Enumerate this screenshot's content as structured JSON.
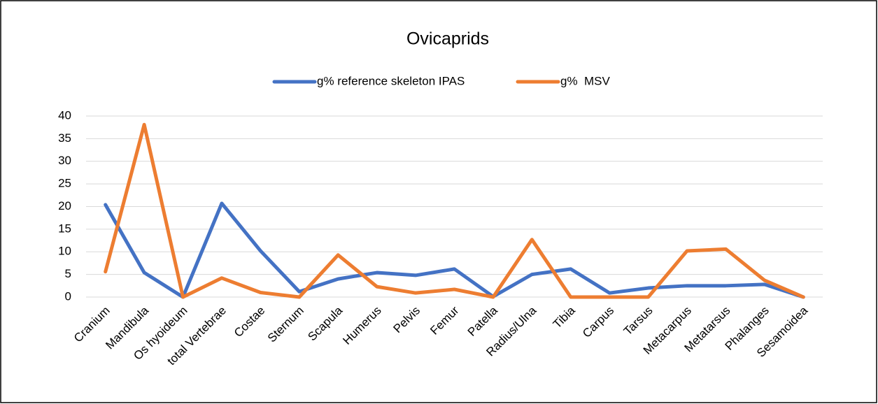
{
  "chart_data": {
    "type": "line",
    "title": "Ovicaprids",
    "categories": [
      "Cranium",
      "Mandibula",
      "Os hyoideum",
      "total Vertebrae",
      "Costae",
      "Sternum",
      "Scapula",
      "Humerus",
      "Pelvis",
      "Femur",
      "Patella",
      "Radius/Ulna",
      "Tibia",
      "Carpus",
      "Tarsus",
      "Metacarpus",
      "Metatarsus",
      "Phalanges",
      "Sesamoidea"
    ],
    "series": [
      {
        "name": "g% reference skeleton IPAS",
        "color": "#4472c4",
        "values": [
          20.4,
          5.4,
          0,
          20.7,
          10.2,
          1.2,
          4,
          5.4,
          4.8,
          6.2,
          0.1,
          5,
          6.2,
          0.9,
          2,
          2.5,
          2.5,
          2.8,
          0
        ]
      },
      {
        "name": "g%  MSV",
        "color": "#ed7d31",
        "values": [
          5.6,
          38.1,
          0,
          4.2,
          1,
          0,
          9.3,
          2.3,
          0.9,
          1.7,
          0,
          12.7,
          0,
          0,
          0,
          10.2,
          10.6,
          3.7,
          0
        ]
      }
    ],
    "ylim": [
      0,
      40
    ],
    "yticks": [
      0,
      5,
      10,
      15,
      20,
      25,
      30,
      35,
      40
    ],
    "grid": true
  }
}
